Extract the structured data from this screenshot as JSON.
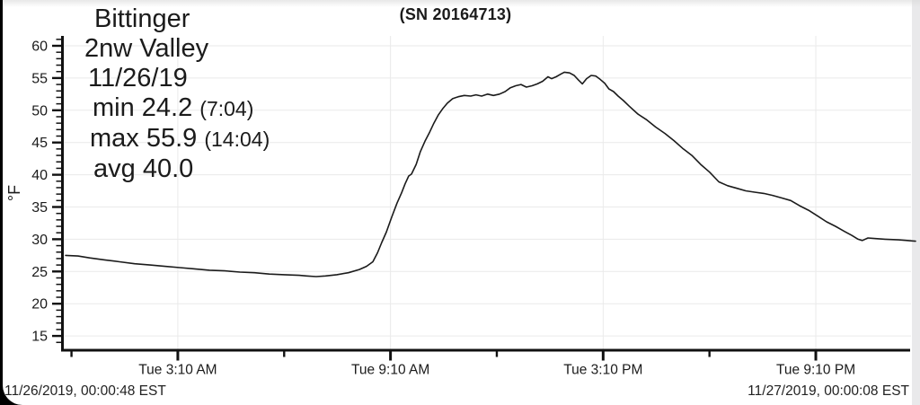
{
  "header": {
    "title": "(SN 20164713)"
  },
  "station": {
    "name": "Bittinger",
    "location": "2nw Valley",
    "date": "11/26/19",
    "stats": [
      {
        "main": "min 24.2",
        "time": "(7:04)"
      },
      {
        "main": "max 55.9",
        "time": "(14:04)"
      },
      {
        "main": "avg 40.0",
        "time": ""
      }
    ]
  },
  "footer": {
    "start_timestamp": "11/26/2019, 00:00:48 EST",
    "end_timestamp": "11/27/2019, 00:00:08 EST"
  },
  "colors": {
    "line": "#1b1b1b",
    "axis": "#111111",
    "grid": "#eaeaea",
    "text": "#1b1b1b",
    "background": "#ffffff",
    "frame": "#000000"
  },
  "chart_data": {
    "type": "line",
    "title": "(SN 20164713)",
    "ylabel": "°F",
    "xlabel": "",
    "x_unit": "hours since 11/26/2019 00:00 EST",
    "xlim": [
      0,
      24
    ],
    "ylim": [
      13.5,
      61.5
    ],
    "grid": true,
    "legend_position": "none",
    "y_ticks_major": [
      15,
      20,
      25,
      30,
      35,
      40,
      45,
      50,
      55,
      60
    ],
    "y_minor_tick_step": 1,
    "y_minor_range": [
      14,
      61
    ],
    "x_ticks_major": [
      {
        "hour": 3.1667,
        "label": "Tue 3:10 AM"
      },
      {
        "hour": 9.1667,
        "label": "Tue 9:10 AM"
      },
      {
        "hour": 15.1667,
        "label": "Tue 3:10 PM"
      },
      {
        "hour": 21.1667,
        "label": "Tue 9:10 PM"
      }
    ],
    "x_ticks_minor_hours": [
      0.1667,
      6.1667,
      12.1667,
      18.1667
    ],
    "stats": {
      "min_f": 24.2,
      "min_time": "7:04",
      "max_f": 55.9,
      "max_time": "14:04",
      "avg_f": 40.0
    },
    "series": [
      {
        "name": "temperature_F",
        "points": [
          [
            0.0,
            27.5
          ],
          [
            0.35,
            27.4
          ],
          [
            0.68,
            27.1
          ],
          [
            1.1,
            26.8
          ],
          [
            1.52,
            26.5
          ],
          [
            1.95,
            26.2
          ],
          [
            2.38,
            26.0
          ],
          [
            2.8,
            25.8
          ],
          [
            3.22,
            25.6
          ],
          [
            3.64,
            25.4
          ],
          [
            4.06,
            25.2
          ],
          [
            4.49,
            25.1
          ],
          [
            4.92,
            24.9
          ],
          [
            5.33,
            24.8
          ],
          [
            5.75,
            24.6
          ],
          [
            6.17,
            24.5
          ],
          [
            6.59,
            24.4
          ],
          [
            6.8,
            24.3
          ],
          [
            7.07,
            24.2
          ],
          [
            7.33,
            24.3
          ],
          [
            7.65,
            24.5
          ],
          [
            7.98,
            24.8
          ],
          [
            8.29,
            25.3
          ],
          [
            8.49,
            25.8
          ],
          [
            8.67,
            26.5
          ],
          [
            8.8,
            27.9
          ],
          [
            8.92,
            29.5
          ],
          [
            9.05,
            31.1
          ],
          [
            9.2,
            33.4
          ],
          [
            9.35,
            35.6
          ],
          [
            9.48,
            37.2
          ],
          [
            9.58,
            38.6
          ],
          [
            9.68,
            39.8
          ],
          [
            9.76,
            40.1
          ],
          [
            9.89,
            41.6
          ],
          [
            10.01,
            43.6
          ],
          [
            10.14,
            45.2
          ],
          [
            10.27,
            46.6
          ],
          [
            10.39,
            48.0
          ],
          [
            10.52,
            49.3
          ],
          [
            10.65,
            50.3
          ],
          [
            10.77,
            51.1
          ],
          [
            10.92,
            51.8
          ],
          [
            11.08,
            52.1
          ],
          [
            11.25,
            52.3
          ],
          [
            11.43,
            52.2
          ],
          [
            11.58,
            52.4
          ],
          [
            11.74,
            52.2
          ],
          [
            11.91,
            52.5
          ],
          [
            12.07,
            52.3
          ],
          [
            12.24,
            52.5
          ],
          [
            12.4,
            52.9
          ],
          [
            12.55,
            53.5
          ],
          [
            12.7,
            53.8
          ],
          [
            12.85,
            54.0
          ],
          [
            13.0,
            53.6
          ],
          [
            13.16,
            53.8
          ],
          [
            13.31,
            54.1
          ],
          [
            13.46,
            54.5
          ],
          [
            13.61,
            55.2
          ],
          [
            13.71,
            54.9
          ],
          [
            13.84,
            55.2
          ],
          [
            13.97,
            55.6
          ],
          [
            14.07,
            55.9
          ],
          [
            14.22,
            55.8
          ],
          [
            14.35,
            55.4
          ],
          [
            14.47,
            54.7
          ],
          [
            14.58,
            54.1
          ],
          [
            14.7,
            54.9
          ],
          [
            14.83,
            55.4
          ],
          [
            14.96,
            55.3
          ],
          [
            15.08,
            54.8
          ],
          [
            15.21,
            54.2
          ],
          [
            15.33,
            53.3
          ],
          [
            15.46,
            52.9
          ],
          [
            15.59,
            52.2
          ],
          [
            15.74,
            51.5
          ],
          [
            15.89,
            50.7
          ],
          [
            16.15,
            49.4
          ],
          [
            16.4,
            48.5
          ],
          [
            16.65,
            47.4
          ],
          [
            16.91,
            46.4
          ],
          [
            17.16,
            45.3
          ],
          [
            17.41,
            44.1
          ],
          [
            17.67,
            43.0
          ],
          [
            17.92,
            41.6
          ],
          [
            18.17,
            40.4
          ],
          [
            18.43,
            38.9
          ],
          [
            18.68,
            38.3
          ],
          [
            18.94,
            37.9
          ],
          [
            19.19,
            37.5
          ],
          [
            19.44,
            37.3
          ],
          [
            19.7,
            37.1
          ],
          [
            19.95,
            36.8
          ],
          [
            20.2,
            36.4
          ],
          [
            20.46,
            36.0
          ],
          [
            20.71,
            35.2
          ],
          [
            20.96,
            34.5
          ],
          [
            21.22,
            33.6
          ],
          [
            21.47,
            32.7
          ],
          [
            21.72,
            32.0
          ],
          [
            21.98,
            31.2
          ],
          [
            22.18,
            30.6
          ],
          [
            22.36,
            30.0
          ],
          [
            22.48,
            29.8
          ],
          [
            22.64,
            30.2
          ],
          [
            22.86,
            30.1
          ],
          [
            23.12,
            30.0
          ],
          [
            23.5,
            29.9
          ],
          [
            23.75,
            29.8
          ],
          [
            23.98,
            29.7
          ]
        ]
      }
    ]
  }
}
